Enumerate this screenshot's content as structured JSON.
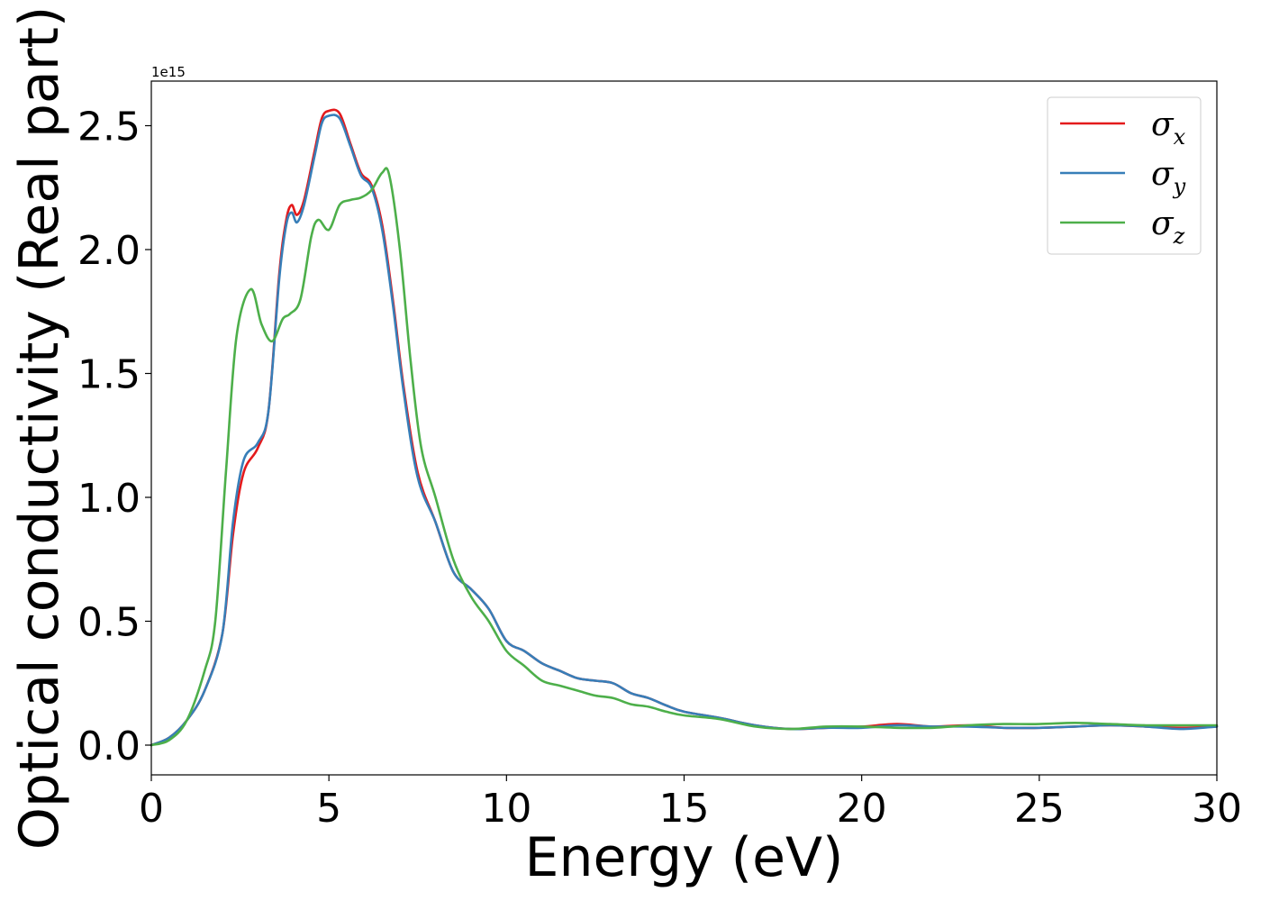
{
  "chart_data": {
    "type": "line",
    "title": "",
    "xlabel": "Energy (eV)",
    "ylabel": "Optical conductivity (Real part)",
    "y_offset_label": "1e15",
    "xlim": [
      0,
      30
    ],
    "ylim": [
      -0.12,
      2.68
    ],
    "xticks": [
      0,
      5,
      10,
      15,
      20,
      25,
      30
    ],
    "xtick_labels": [
      "0",
      "5",
      "10",
      "15",
      "20",
      "25",
      "30"
    ],
    "yticks": [
      0.0,
      0.5,
      1.0,
      1.5,
      2.0,
      2.5
    ],
    "ytick_labels": [
      "0.0",
      "0.5",
      "1.0",
      "1.5",
      "2.0",
      "2.5"
    ],
    "grid": false,
    "legend_position": "top-right",
    "series": [
      {
        "name": "σx",
        "symbol": "σ",
        "subscript": "x",
        "color": "#e41a1c",
        "x": [
          0,
          0.5,
          1,
          1.5,
          2,
          2.3,
          2.6,
          3,
          3.3,
          3.6,
          3.8,
          3.95,
          4.1,
          4.3,
          4.6,
          4.8,
          5.0,
          5.3,
          5.6,
          5.9,
          6.2,
          6.5,
          6.8,
          7.1,
          7.5,
          8.0,
          8.5,
          9.0,
          9.5,
          10.0,
          10.5,
          11,
          11.5,
          12,
          12.5,
          13,
          13.5,
          14,
          14.5,
          15,
          16,
          17,
          18,
          19,
          20,
          21,
          22,
          23,
          24,
          25,
          26,
          27,
          28,
          29,
          30
        ],
        "values": [
          0.0,
          0.03,
          0.1,
          0.22,
          0.45,
          0.85,
          1.1,
          1.2,
          1.35,
          1.9,
          2.12,
          2.18,
          2.14,
          2.2,
          2.4,
          2.53,
          2.56,
          2.55,
          2.43,
          2.31,
          2.26,
          2.1,
          1.8,
          1.45,
          1.1,
          0.9,
          0.7,
          0.63,
          0.55,
          0.42,
          0.38,
          0.33,
          0.3,
          0.27,
          0.26,
          0.25,
          0.21,
          0.19,
          0.16,
          0.135,
          0.11,
          0.08,
          0.065,
          0.07,
          0.075,
          0.085,
          0.075,
          0.08,
          0.07,
          0.07,
          0.075,
          0.08,
          0.075,
          0.07,
          0.075
        ]
      },
      {
        "name": "σy",
        "symbol": "σ",
        "subscript": "y",
        "color": "#377eb8",
        "x": [
          0,
          0.5,
          1,
          1.5,
          2,
          2.3,
          2.6,
          3,
          3.3,
          3.6,
          3.8,
          3.95,
          4.1,
          4.3,
          4.6,
          4.8,
          5.0,
          5.3,
          5.6,
          5.9,
          6.2,
          6.5,
          6.8,
          7.1,
          7.5,
          8.0,
          8.5,
          9.0,
          9.5,
          10.0,
          10.5,
          11,
          11.5,
          12,
          12.5,
          13,
          13.5,
          14,
          14.5,
          15,
          16,
          17,
          18,
          19,
          20,
          21,
          22,
          23,
          24,
          25,
          26,
          27,
          28,
          29,
          30
        ],
        "values": [
          0.0,
          0.03,
          0.1,
          0.22,
          0.45,
          0.9,
          1.15,
          1.22,
          1.35,
          1.88,
          2.1,
          2.15,
          2.11,
          2.18,
          2.38,
          2.51,
          2.54,
          2.53,
          2.42,
          2.3,
          2.25,
          2.08,
          1.78,
          1.43,
          1.08,
          0.9,
          0.7,
          0.63,
          0.55,
          0.42,
          0.38,
          0.33,
          0.3,
          0.27,
          0.26,
          0.25,
          0.21,
          0.19,
          0.16,
          0.135,
          0.11,
          0.08,
          0.065,
          0.07,
          0.07,
          0.08,
          0.075,
          0.075,
          0.07,
          0.07,
          0.075,
          0.08,
          0.075,
          0.065,
          0.075
        ]
      },
      {
        "name": "σz",
        "symbol": "σ",
        "subscript": "z",
        "color": "#4daf4a",
        "x": [
          0,
          0.5,
          1,
          1.5,
          1.8,
          2.1,
          2.4,
          2.8,
          3.1,
          3.4,
          3.7,
          3.9,
          4.2,
          4.5,
          4.7,
          5.0,
          5.3,
          5.6,
          5.9,
          6.2,
          6.5,
          6.7,
          7.0,
          7.3,
          7.6,
          8.0,
          8.5,
          9.0,
          9.5,
          10.0,
          10.5,
          11,
          11.5,
          12,
          12.5,
          13,
          13.5,
          14,
          14.5,
          15,
          16,
          17,
          18,
          19,
          20,
          21,
          22,
          23,
          24,
          25,
          26,
          27,
          28,
          29,
          30
        ],
        "values": [
          0.0,
          0.02,
          0.1,
          0.3,
          0.5,
          1.1,
          1.65,
          1.84,
          1.7,
          1.63,
          1.72,
          1.74,
          1.8,
          2.05,
          2.12,
          2.08,
          2.18,
          2.2,
          2.21,
          2.24,
          2.31,
          2.3,
          2.0,
          1.55,
          1.2,
          1.0,
          0.75,
          0.6,
          0.5,
          0.38,
          0.32,
          0.26,
          0.24,
          0.22,
          0.2,
          0.19,
          0.165,
          0.155,
          0.135,
          0.12,
          0.105,
          0.075,
          0.065,
          0.075,
          0.075,
          0.07,
          0.07,
          0.08,
          0.085,
          0.085,
          0.09,
          0.085,
          0.08,
          0.08,
          0.08
        ]
      }
    ]
  }
}
